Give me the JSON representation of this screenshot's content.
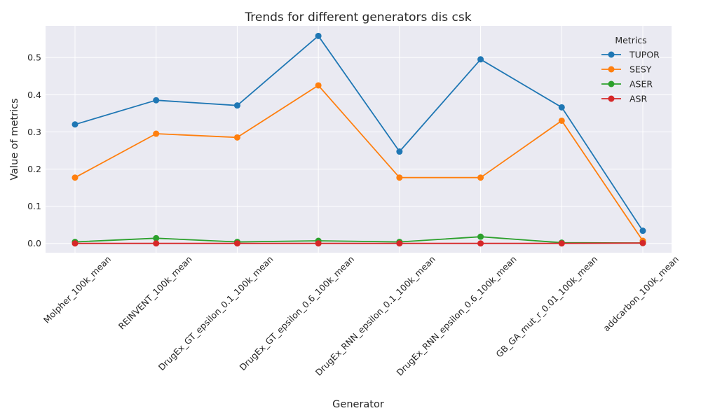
{
  "chart_data": {
    "type": "line",
    "title": "Trends for different generators dis csk",
    "xlabel": "Generator",
    "ylabel": "Value of metrics",
    "categories": [
      "Molpher_100k_mean",
      "REINVENT_100k_mean",
      "DrugEx_GT_epsilon_0.1_100k_mean",
      "DrugEx_GT_epsilon_0.6_100k_mean",
      "DrugEx_RNN_epsilon_0.1_100k_mean",
      "DrugEx_RNN_epsilon_0.6_100k_mean",
      "GB_GA_mut_r_0.01_100k_mean",
      "addcarbon_100k_mean"
    ],
    "ylim": [
      -0.025,
      0.585
    ],
    "yticks": [
      "0.0",
      "0.1",
      "0.2",
      "0.3",
      "0.4",
      "0.5"
    ],
    "grid": true,
    "legend": {
      "title": "Metrics",
      "placement": "top-right"
    },
    "series": [
      {
        "name": "TUPOR",
        "color": "#1f77b4",
        "values": [
          0.32,
          0.385,
          0.371,
          0.558,
          0.247,
          0.495,
          0.366,
          0.034
        ]
      },
      {
        "name": "SESY",
        "color": "#ff7f0e",
        "values": [
          0.177,
          0.295,
          0.285,
          0.425,
          0.177,
          0.177,
          0.33,
          0.007
        ]
      },
      {
        "name": "ASER",
        "color": "#2ca02c",
        "values": [
          0.004,
          0.014,
          0.004,
          0.007,
          0.004,
          0.018,
          0.002,
          0.001
        ]
      },
      {
        "name": "ASR",
        "color": "#d62728",
        "values": [
          0.0,
          0.0,
          0.0,
          0.0,
          0.0,
          0.0,
          0.0,
          0.001
        ]
      }
    ]
  }
}
